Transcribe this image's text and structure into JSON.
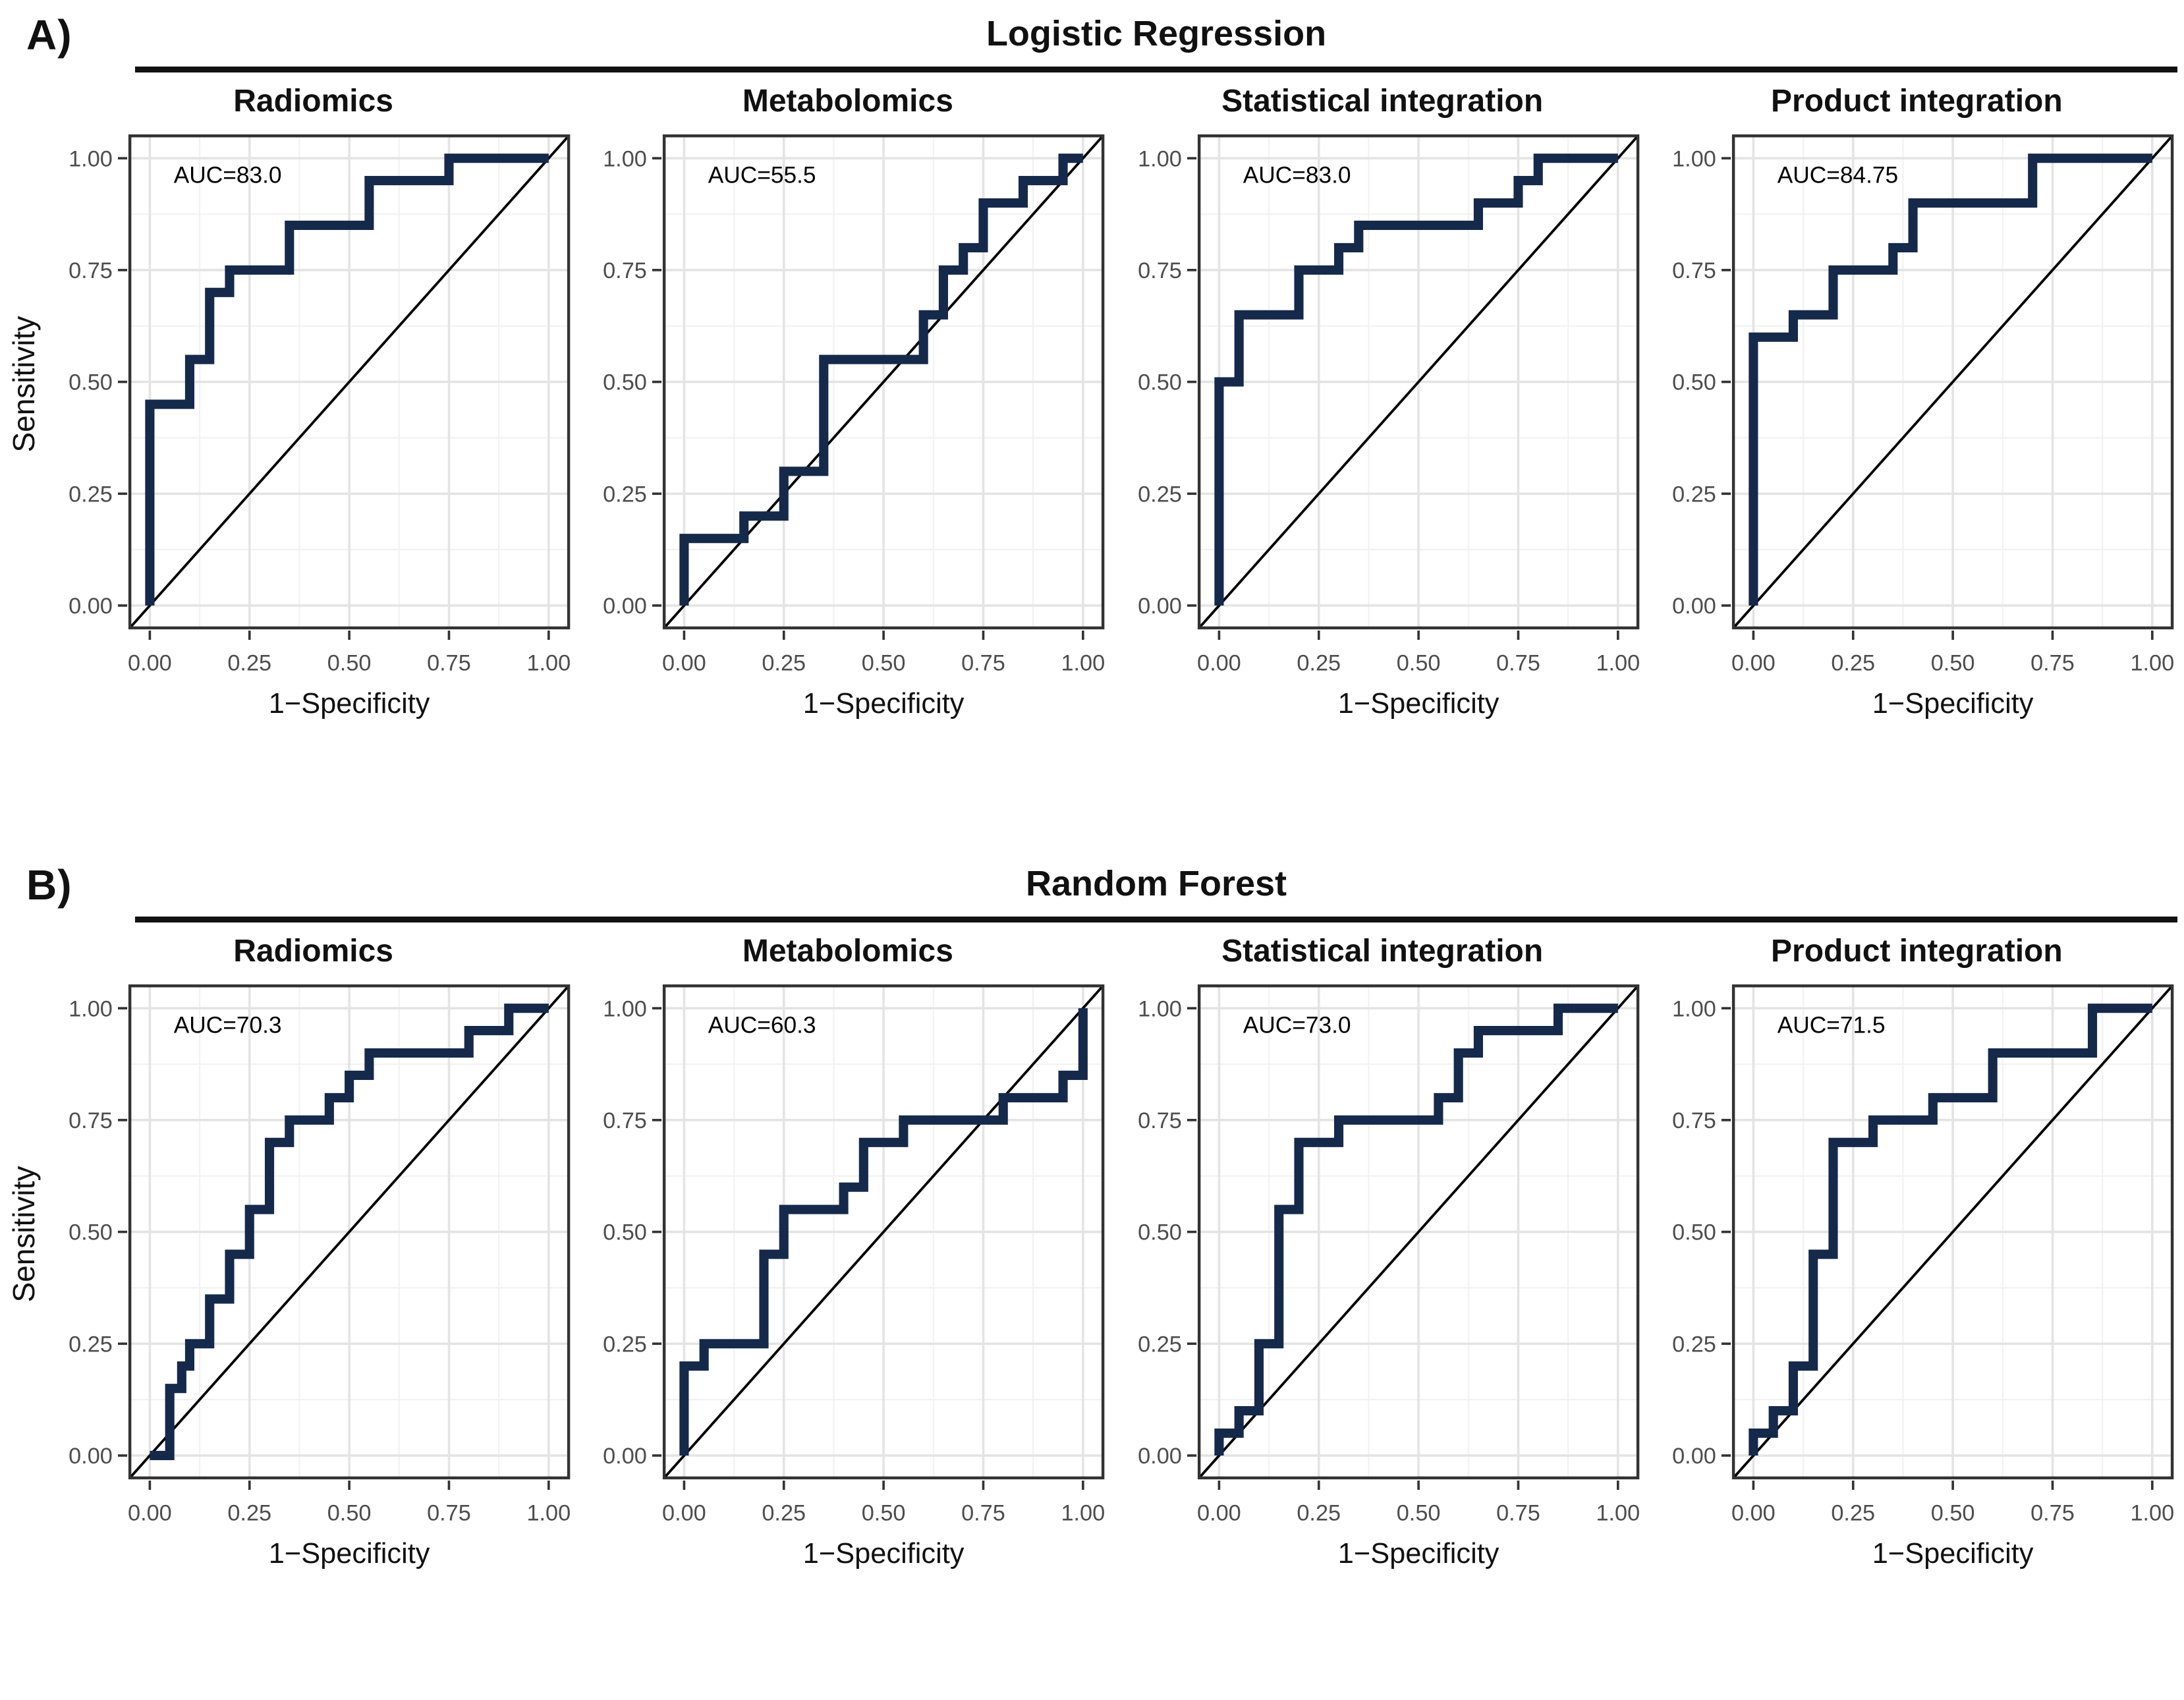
{
  "figure": {
    "rows": [
      {
        "corner_label": "A)",
        "title": "Logistic Regression"
      },
      {
        "corner_label": "B)",
        "title": "Random Forest"
      }
    ]
  },
  "colors": {
    "curve": "#15294b",
    "diagonal": "#000000",
    "grid_major": "#e4e4e4",
    "grid_minor": "#f2f2f2",
    "panel_border": "#333333",
    "tick_label": "#4d4d4d",
    "axis_title": "#111111",
    "auc_text": "#000000",
    "underline": "#111111"
  },
  "chart_data": {
    "type": "line",
    "subtype": "roc_step_curves",
    "xlabel": "1−Specificity",
    "ylabel": "Sensitivity",
    "xlim": [
      0,
      1
    ],
    "ylim": [
      0,
      1
    ],
    "tick_labels": [
      "0.00",
      "0.25",
      "0.50",
      "0.75",
      "1.00"
    ],
    "tick_values": [
      0,
      0.25,
      0.5,
      0.75,
      1
    ],
    "minor_tick_values": [
      0.125,
      0.375,
      0.625,
      0.875
    ],
    "grid": true,
    "legend": false,
    "diagonal_reference": true,
    "row_groups": [
      "Logistic Regression",
      "Random Forest"
    ],
    "panels": [
      {
        "row": 0,
        "col": 0,
        "group": "Logistic Regression",
        "title": "Radiomics",
        "auc": 83.0,
        "auc_label": "AUC=83.0",
        "roc_points": [
          [
            0,
            0
          ],
          [
            0,
            0.45
          ],
          [
            0.1,
            0.45
          ],
          [
            0.1,
            0.55
          ],
          [
            0.15,
            0.55
          ],
          [
            0.15,
            0.7
          ],
          [
            0.2,
            0.7
          ],
          [
            0.2,
            0.75
          ],
          [
            0.35,
            0.75
          ],
          [
            0.35,
            0.85
          ],
          [
            0.55,
            0.85
          ],
          [
            0.55,
            0.95
          ],
          [
            0.75,
            0.95
          ],
          [
            0.75,
            1
          ],
          [
            1,
            1
          ]
        ]
      },
      {
        "row": 0,
        "col": 1,
        "group": "Logistic Regression",
        "title": "Metabolomics",
        "auc": 55.5,
        "auc_label": "AUC=55.5",
        "roc_points": [
          [
            0,
            0
          ],
          [
            0,
            0.15
          ],
          [
            0.15,
            0.15
          ],
          [
            0.15,
            0.2
          ],
          [
            0.25,
            0.2
          ],
          [
            0.25,
            0.3
          ],
          [
            0.35,
            0.3
          ],
          [
            0.35,
            0.55
          ],
          [
            0.6,
            0.55
          ],
          [
            0.6,
            0.65
          ],
          [
            0.65,
            0.65
          ],
          [
            0.65,
            0.75
          ],
          [
            0.7,
            0.75
          ],
          [
            0.7,
            0.8
          ],
          [
            0.75,
            0.8
          ],
          [
            0.75,
            0.9
          ],
          [
            0.85,
            0.9
          ],
          [
            0.85,
            0.95
          ],
          [
            0.95,
            0.95
          ],
          [
            0.95,
            1
          ],
          [
            1,
            1
          ]
        ]
      },
      {
        "row": 0,
        "col": 2,
        "group": "Logistic Regression",
        "title": "Statistical integration",
        "auc": 83.0,
        "auc_label": "AUC=83.0",
        "roc_points": [
          [
            0,
            0
          ],
          [
            0,
            0.5
          ],
          [
            0.05,
            0.5
          ],
          [
            0.05,
            0.65
          ],
          [
            0.2,
            0.65
          ],
          [
            0.2,
            0.75
          ],
          [
            0.3,
            0.75
          ],
          [
            0.3,
            0.8
          ],
          [
            0.35,
            0.8
          ],
          [
            0.35,
            0.85
          ],
          [
            0.65,
            0.85
          ],
          [
            0.65,
            0.9
          ],
          [
            0.75,
            0.9
          ],
          [
            0.75,
            0.95
          ],
          [
            0.8,
            0.95
          ],
          [
            0.8,
            1
          ],
          [
            1,
            1
          ]
        ]
      },
      {
        "row": 0,
        "col": 3,
        "group": "Logistic Regression",
        "title": "Product integration",
        "auc": 84.75,
        "auc_label": "AUC=84.75",
        "roc_points": [
          [
            0,
            0
          ],
          [
            0,
            0.6
          ],
          [
            0.1,
            0.6
          ],
          [
            0.1,
            0.65
          ],
          [
            0.2,
            0.65
          ],
          [
            0.2,
            0.75
          ],
          [
            0.35,
            0.75
          ],
          [
            0.35,
            0.8
          ],
          [
            0.4,
            0.8
          ],
          [
            0.4,
            0.9
          ],
          [
            0.7,
            0.9
          ],
          [
            0.7,
            1
          ],
          [
            1,
            1
          ]
        ]
      },
      {
        "row": 1,
        "col": 0,
        "group": "Random Forest",
        "title": "Radiomics",
        "auc": 70.3,
        "auc_label": "AUC=70.3",
        "roc_points": [
          [
            0,
            0
          ],
          [
            0.05,
            0
          ],
          [
            0.05,
            0.15
          ],
          [
            0.08,
            0.15
          ],
          [
            0.08,
            0.2
          ],
          [
            0.1,
            0.2
          ],
          [
            0.1,
            0.25
          ],
          [
            0.15,
            0.25
          ],
          [
            0.15,
            0.35
          ],
          [
            0.2,
            0.35
          ],
          [
            0.2,
            0.45
          ],
          [
            0.25,
            0.45
          ],
          [
            0.25,
            0.55
          ],
          [
            0.3,
            0.55
          ],
          [
            0.3,
            0.7
          ],
          [
            0.35,
            0.7
          ],
          [
            0.35,
            0.75
          ],
          [
            0.45,
            0.75
          ],
          [
            0.45,
            0.8
          ],
          [
            0.5,
            0.8
          ],
          [
            0.5,
            0.85
          ],
          [
            0.55,
            0.85
          ],
          [
            0.55,
            0.9
          ],
          [
            0.8,
            0.9
          ],
          [
            0.8,
            0.95
          ],
          [
            0.9,
            0.95
          ],
          [
            0.9,
            1
          ],
          [
            1,
            1
          ]
        ]
      },
      {
        "row": 1,
        "col": 1,
        "group": "Random Forest",
        "title": "Metabolomics",
        "auc": 60.3,
        "auc_label": "AUC=60.3",
        "roc_points": [
          [
            0,
            0
          ],
          [
            0,
            0.2
          ],
          [
            0.05,
            0.2
          ],
          [
            0.05,
            0.25
          ],
          [
            0.2,
            0.25
          ],
          [
            0.2,
            0.45
          ],
          [
            0.25,
            0.45
          ],
          [
            0.25,
            0.55
          ],
          [
            0.4,
            0.55
          ],
          [
            0.4,
            0.6
          ],
          [
            0.45,
            0.6
          ],
          [
            0.45,
            0.7
          ],
          [
            0.55,
            0.7
          ],
          [
            0.55,
            0.75
          ],
          [
            0.8,
            0.75
          ],
          [
            0.8,
            0.8
          ],
          [
            0.95,
            0.8
          ],
          [
            0.95,
            0.85
          ],
          [
            1,
            0.85
          ],
          [
            1,
            1
          ]
        ]
      },
      {
        "row": 1,
        "col": 2,
        "group": "Random Forest",
        "title": "Statistical integration",
        "auc": 73.0,
        "auc_label": "AUC=73.0",
        "roc_points": [
          [
            0,
            0
          ],
          [
            0,
            0.05
          ],
          [
            0.05,
            0.05
          ],
          [
            0.05,
            0.1
          ],
          [
            0.1,
            0.1
          ],
          [
            0.1,
            0.25
          ],
          [
            0.15,
            0.25
          ],
          [
            0.15,
            0.55
          ],
          [
            0.2,
            0.55
          ],
          [
            0.2,
            0.7
          ],
          [
            0.3,
            0.7
          ],
          [
            0.3,
            0.75
          ],
          [
            0.55,
            0.75
          ],
          [
            0.55,
            0.8
          ],
          [
            0.6,
            0.8
          ],
          [
            0.6,
            0.9
          ],
          [
            0.65,
            0.9
          ],
          [
            0.65,
            0.95
          ],
          [
            0.85,
            0.95
          ],
          [
            0.85,
            1
          ],
          [
            1,
            1
          ]
        ]
      },
      {
        "row": 1,
        "col": 3,
        "group": "Random Forest",
        "title": "Product integration",
        "auc": 71.5,
        "auc_label": "AUC=71.5",
        "roc_points": [
          [
            0,
            0
          ],
          [
            0,
            0.05
          ],
          [
            0.05,
            0.05
          ],
          [
            0.05,
            0.1
          ],
          [
            0.1,
            0.1
          ],
          [
            0.1,
            0.2
          ],
          [
            0.15,
            0.2
          ],
          [
            0.15,
            0.45
          ],
          [
            0.2,
            0.45
          ],
          [
            0.2,
            0.7
          ],
          [
            0.3,
            0.7
          ],
          [
            0.3,
            0.75
          ],
          [
            0.45,
            0.75
          ],
          [
            0.45,
            0.8
          ],
          [
            0.6,
            0.8
          ],
          [
            0.6,
            0.9
          ],
          [
            0.85,
            0.9
          ],
          [
            0.85,
            1
          ],
          [
            1,
            1
          ]
        ]
      }
    ]
  }
}
